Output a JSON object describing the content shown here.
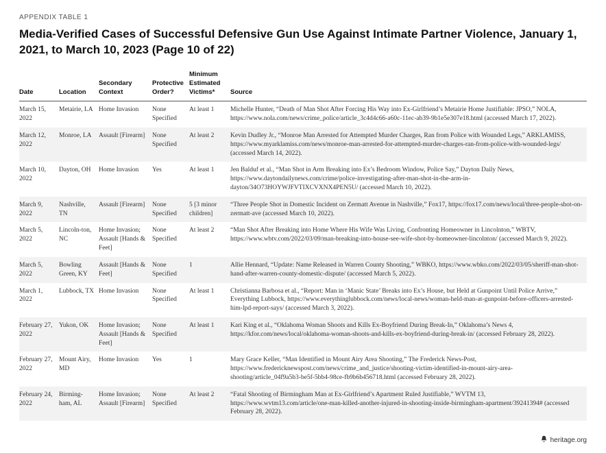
{
  "label": "APPENDIX TABLE 1",
  "title": "Media-Verified Cases of Successful Defensive Gun Use Against Intimate Partner Violence, January 1, 2021, to March 10, 2023 (Page 10 of 22)",
  "columns": [
    "Date",
    "Location",
    "Secondary Context",
    "Protective Order?",
    "Minimum Estimated Victims*",
    "Source"
  ],
  "rows": [
    {
      "date": "March 15, 2022",
      "location": "Metairie, LA",
      "context": "Home Invasion",
      "order": "None Specified",
      "victims": "At least 1",
      "source": "Michelle Hunter, “Death of Man Shot After Forcing His Way into Ex-Girlfriend’s Metairie Home Justifiable: JPSO,” NOLA, https://www.nola.com/news/crime_police/article_3c4d4c66-a60c-11ec-ab39-9b1e5e307e18.html (accessed March 17, 2022)."
    },
    {
      "date": "March 12, 2022",
      "location": "Monroe, LA",
      "context": "Assault [Firearm]",
      "order": "None Specified",
      "victims": "At least 2",
      "source": "Kevin Dudley Jr., “Monroe Man Arrested for Attempted Murder Charges, Ran from Police with Wounded Legs,” ARKLAMISS, https://www.myarklamiss.com/news/monroe-man-arrested-for-attempted-murder-charges-ran-from-police-with-wounded-legs/ (accessed March 14, 2022)."
    },
    {
      "date": "March 10, 2022",
      "location": "Dayton, OH",
      "context": "Home Invasion",
      "order": "Yes",
      "victims": "At least 1",
      "source": "Jen Balduf et al., “Man Shot in Arm Breaking into Ex’s Bedroom Window, Police Say,” Dayton Daily News, https://www.daytondailynews.com/crime/police-investigating-after-man-shot-in-the-arm-in-dayton/34O73HOYWJFVTIXCVXNX4PEN5U/ (accessed March 10, 2022)."
    },
    {
      "date": "March 9, 2022",
      "location": "Nashville, TN",
      "context": "Assault [Firearm]",
      "order": "None Specified",
      "victims": "5 [3 minor children]",
      "source": "“Three People Shot in Domestic Incident on Zermatt Avenue in Nashville,” Fox17, https://fox17.com/news/local/three-people-shot-on-zermatt-ave (accessed March 10, 2022)."
    },
    {
      "date": "March 5, 2022",
      "location": "Lincoln-ton, NC",
      "context": "Home Invasion; Assault [Hands & Feet]",
      "order": "None Specified",
      "victims": "At least 2",
      "source": "“Man Shot After Breaking into Home Where His Wife Was Living, Confronting Homeowner in Lincolnton,” WBTV, https://www.wbtv.com/2022/03/09/man-breaking-into-house-see-wife-shot-by-homeowner-lincolnton/ (accessed March 9, 2022)."
    },
    {
      "date": "March 5, 2022",
      "location": "Bowling Green, KY",
      "context": "Assault [Hands & Feet]",
      "order": "None Specified",
      "victims": "1",
      "source": "Allie Hennard, “Update: Name Released in Warren County Shooting,” WBKO, https://www.wbko.com/2022/03/05/sheriff-man-shot-hand-after-warren-county-domestic-dispute/ (accessed March 5, 2022)."
    },
    {
      "date": "March 1, 2022",
      "location": "Lubbock, TX",
      "context": "Home Invasion",
      "order": "None Specified",
      "victims": "At least 1",
      "source": "Christianna Barbosa et al., “Report: Man in ‘Manic State’ Breaks into Ex’s House, but Held at Gunpoint Until Police Arrive,” Everything Lubbock, https://www.everythinglubbock.com/news/local-news/woman-held-man-at-gunpoint-before-officers-arrested-him-lpd-report-says/ (accessed March 3, 2022)."
    },
    {
      "date": "February 27, 2022",
      "location": "Yukon, OK",
      "context": "Home Invasion; Assault [Hands & Feet]",
      "order": "None Specified",
      "victims": "At least 1",
      "source": "Kari King et al., “Oklahoma Woman Shoots and Kills Ex-Boyfriend During Break-In,” Oklahoma’s News 4, https://kfor.com/news/local/oklahoma-woman-shoots-and-kills-ex-boyfriend-during-break-in/ (accessed February 28, 2022)."
    },
    {
      "date": "February 27, 2022",
      "location": "Mount Airy, MD",
      "context": "Home Invasion",
      "order": "Yes",
      "victims": "1",
      "source": "Mary Grace Keller, “Man Identified in Mount Airy Area Shooting,” The Frederick News-Post, https://www.fredericknewspost.com/news/crime_and_justice/shooting-victim-identified-in-mount-airy-area-shooting/article_04f9a5b3-be5f-5bb4-98ce-fb9b6b456718.html (accessed February 28, 2022)."
    },
    {
      "date": "February 24, 2022",
      "location": "Birming-ham, AL",
      "context": "Home Invasion; Assault [Firearm]",
      "order": "None Specified",
      "victims": "At least 2",
      "source": "“Fatal Shooting of Birmingham Man at Ex-Girlfriend’s Apartment Ruled Justifiable,” WVTM 13, https://www.wvtm13.com/article/one-man-killed-another-injured-in-shooting-inside-birmingham-apartment/39241394# (accessed February 28, 2022)."
    }
  ],
  "footer_text": "heritage.org"
}
